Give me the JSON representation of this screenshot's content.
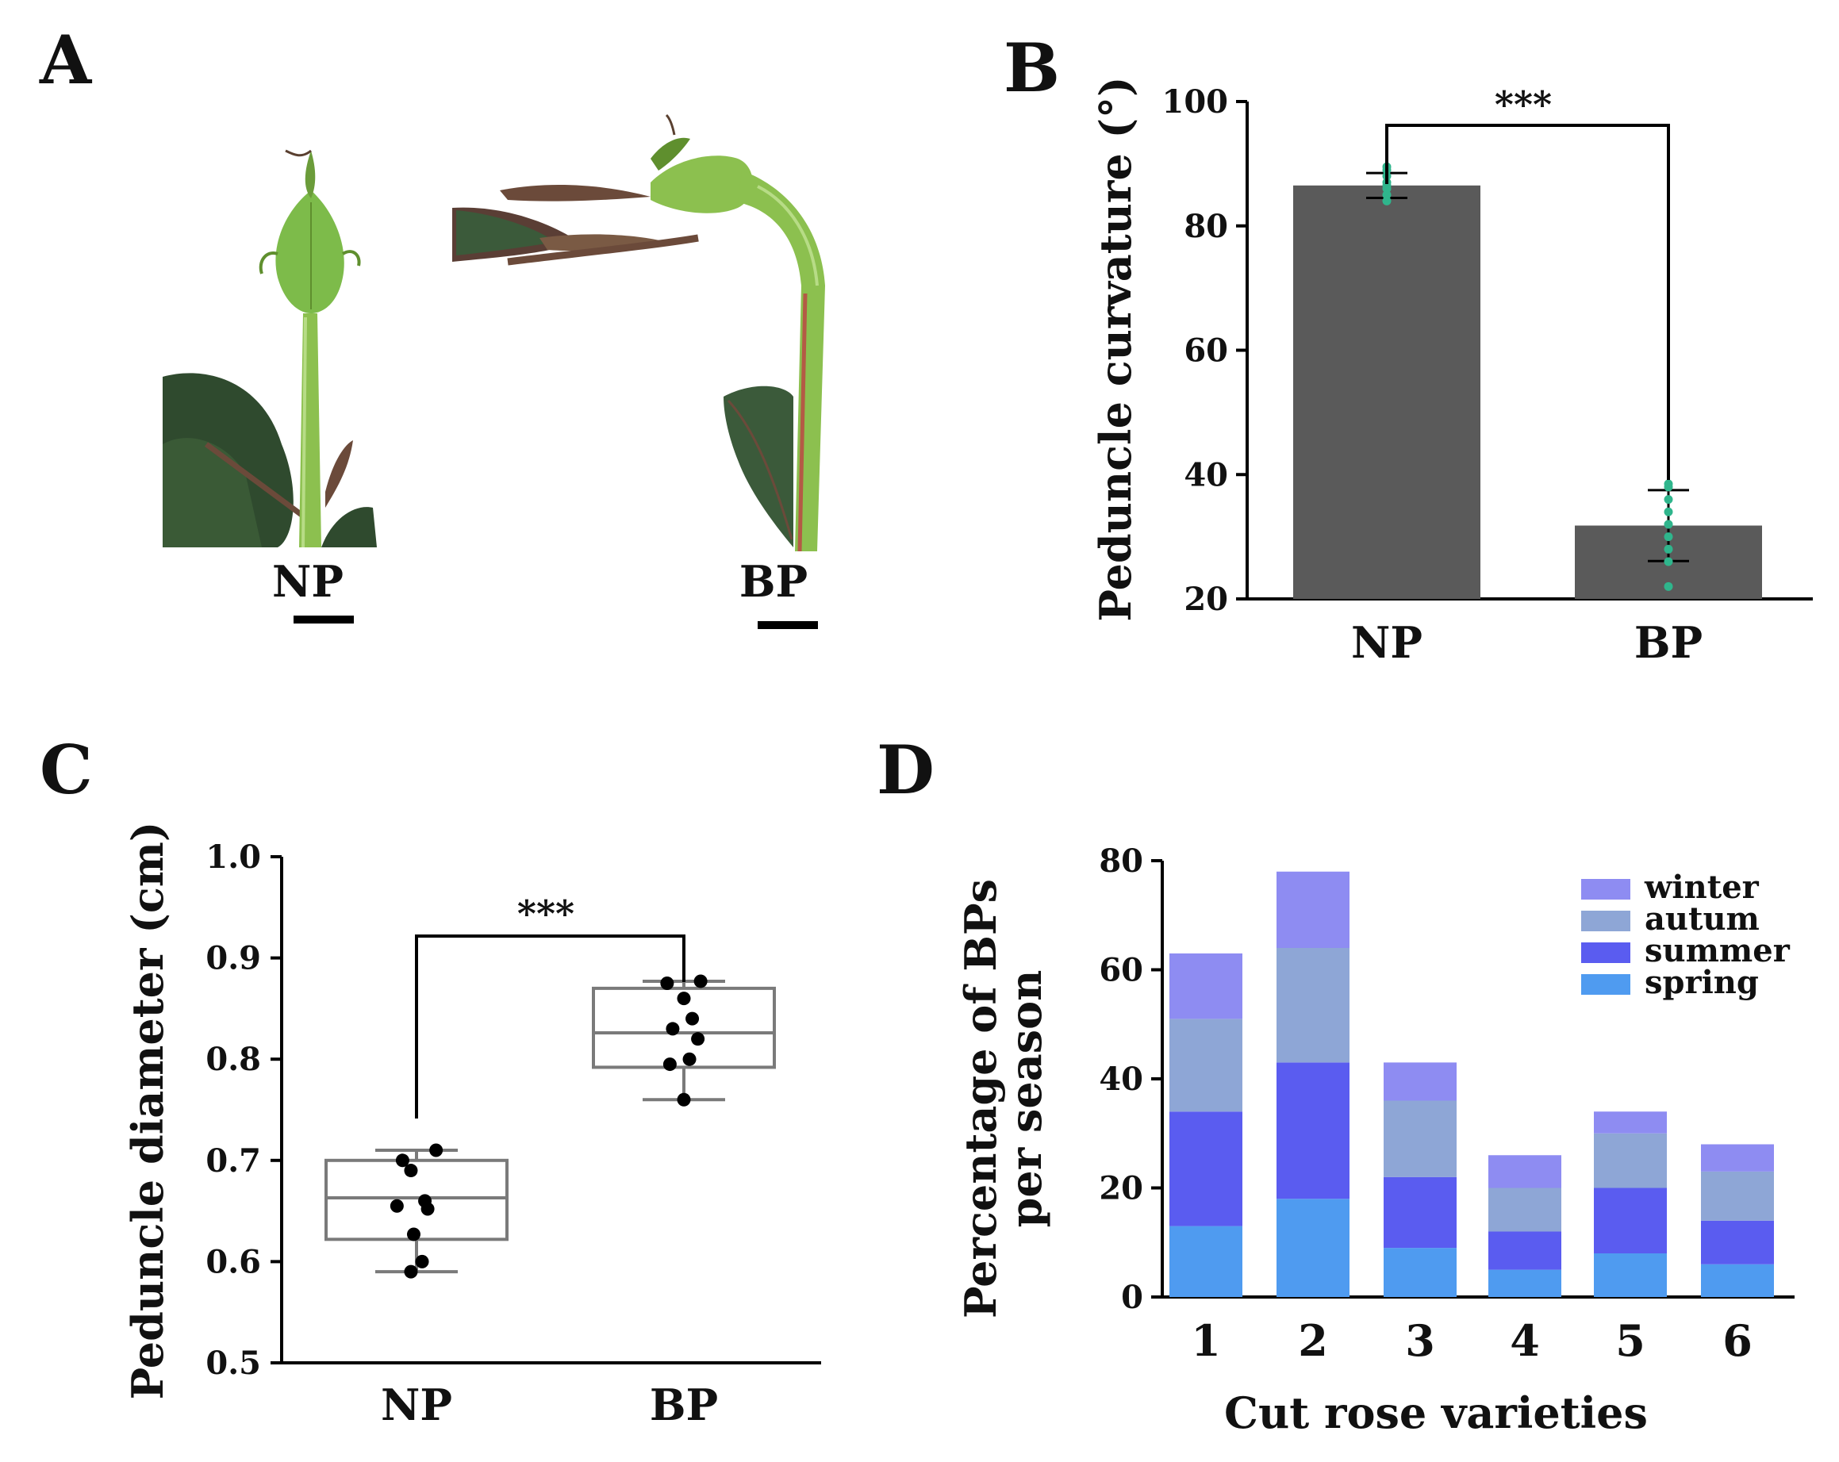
{
  "panel_labels": [
    "A",
    "B",
    "C",
    "D"
  ],
  "photo": {
    "labels": [
      "NP",
      "BP"
    ],
    "colors": {
      "stem": "#8cc04f",
      "stem_dark": "#5f8f2e",
      "leaf": "#2f4a2e",
      "leaf_red": "#6b4a3a",
      "bud": "#7dbb4a"
    }
  },
  "chart_data": [
    {
      "id": "B",
      "type": "bar",
      "title": "",
      "xlabel": "",
      "ylabel": "Peduncle curvature (°)",
      "categories": [
        "NP",
        "BP"
      ],
      "values": [
        86.5,
        31.8
      ],
      "errors": [
        2.0,
        5.7
      ],
      "points": [
        [
          84,
          85,
          86,
          86.5,
          87,
          88,
          89,
          89.5
        ],
        [
          22,
          26,
          28,
          30,
          32,
          34,
          36,
          38,
          38.5
        ]
      ],
      "ylim": [
        20,
        100
      ],
      "yticks": [
        20,
        40,
        60,
        80,
        100
      ],
      "significance": "***",
      "colors": {
        "bar": "#5a5a5a",
        "points": "#2fb58c"
      }
    },
    {
      "id": "C",
      "type": "box",
      "title": "",
      "xlabel": "",
      "ylabel": "Peduncle diameter (cm)",
      "categories": [
        "NP",
        "BP"
      ],
      "boxes": [
        {
          "min": 0.59,
          "q1": 0.622,
          "median": 0.663,
          "q3": 0.7,
          "max": 0.71
        },
        {
          "min": 0.76,
          "q1": 0.792,
          "median": 0.826,
          "q3": 0.87,
          "max": 0.877
        }
      ],
      "points": [
        [
          [
            -0.05,
            0.7
          ],
          [
            0.07,
            0.71
          ],
          [
            -0.02,
            0.69
          ],
          [
            0.03,
            0.66
          ],
          [
            -0.07,
            0.655
          ],
          [
            0.04,
            0.652
          ],
          [
            -0.01,
            0.627
          ],
          [
            0.02,
            0.6
          ],
          [
            -0.02,
            0.59
          ]
        ],
        [
          [
            -0.06,
            0.875
          ],
          [
            0.06,
            0.877
          ],
          [
            0.0,
            0.86
          ],
          [
            0.03,
            0.84
          ],
          [
            -0.04,
            0.83
          ],
          [
            0.05,
            0.82
          ],
          [
            0.02,
            0.8
          ],
          [
            -0.05,
            0.795
          ],
          [
            0.0,
            0.76
          ]
        ]
      ],
      "ylim": [
        0.5,
        1.0
      ],
      "yticks": [
        0.5,
        0.6,
        0.7,
        0.8,
        0.9,
        1.0
      ],
      "significance": "***"
    },
    {
      "id": "D",
      "type": "stacked-bar",
      "title": "",
      "xlabel": "Cut rose varieties",
      "ylabel": "Percentage of BPs per season",
      "ylabel_lines": [
        "Percentage of BPs",
        "per season"
      ],
      "categories": [
        "1",
        "2",
        "3",
        "4",
        "5",
        "6"
      ],
      "series": [
        {
          "name": "spring",
          "values": [
            13,
            18,
            9,
            5,
            8,
            6
          ],
          "color": "#4f9bf0"
        },
        {
          "name": "summer",
          "values": [
            21,
            25,
            13,
            7,
            12,
            8
          ],
          "color": "#5a5cf0"
        },
        {
          "name": "autum",
          "values": [
            17,
            21,
            14,
            8,
            10,
            9
          ],
          "color": "#8ea6d6"
        },
        {
          "name": "winter",
          "values": [
            12,
            14,
            7,
            6,
            4,
            5
          ],
          "color": "#8e8cf2"
        }
      ],
      "ylim": [
        0,
        80
      ],
      "yticks": [
        0,
        20,
        40,
        60,
        80
      ],
      "legend_position": "top-right",
      "legend_order": [
        "winter",
        "autum",
        "summer",
        "spring"
      ]
    }
  ]
}
